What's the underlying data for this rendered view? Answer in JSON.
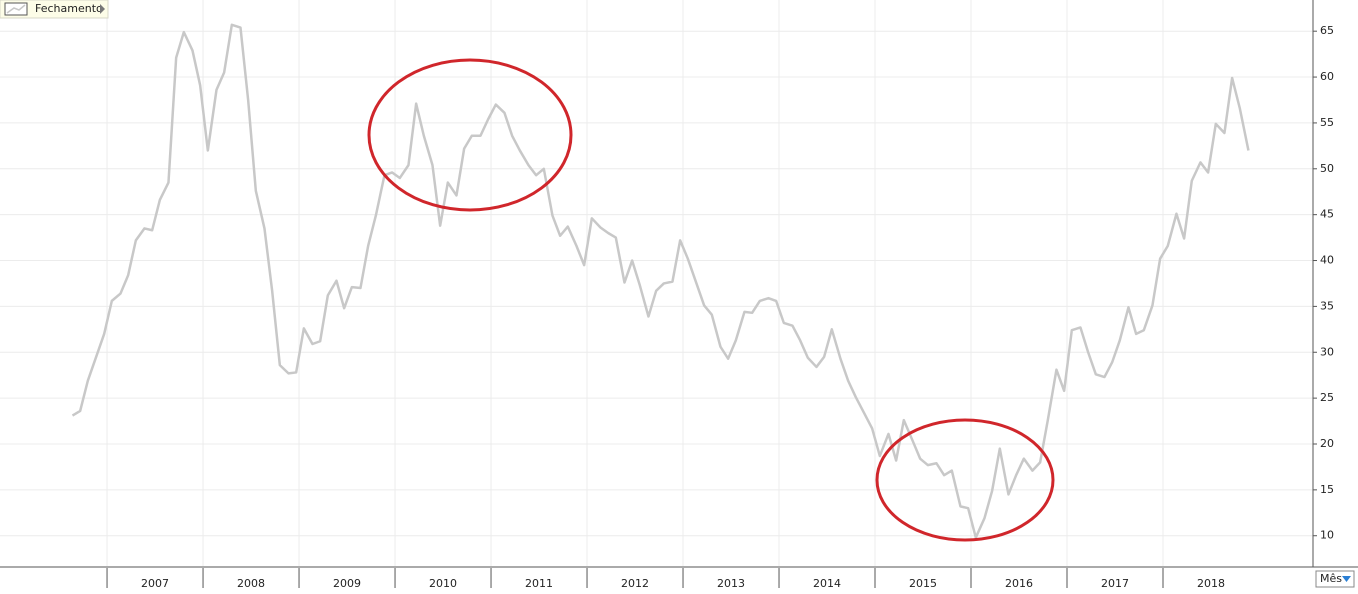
{
  "chart_data": {
    "type": "line",
    "x": [
      2006.64,
      2006.72,
      2006.8,
      2006.89,
      2006.97,
      2007.05,
      2007.14,
      2007.22,
      2007.3,
      2007.39,
      2007.47,
      2007.55,
      2007.64,
      2007.72,
      2007.8,
      2007.89,
      2007.97,
      2008.05,
      2008.14,
      2008.22,
      2008.3,
      2008.39,
      2008.47,
      2008.55,
      2008.64,
      2008.72,
      2008.8,
      2008.89,
      2008.97,
      2009.05,
      2009.14,
      2009.22,
      2009.3,
      2009.39,
      2009.47,
      2009.55,
      2009.64,
      2009.72,
      2009.8,
      2009.89,
      2009.97,
      2010.05,
      2010.14,
      2010.22,
      2010.3,
      2010.39,
      2010.47,
      2010.55,
      2010.64,
      2010.72,
      2010.8,
      2010.89,
      2010.97,
      2011.05,
      2011.14,
      2011.22,
      2011.3,
      2011.39,
      2011.47,
      2011.55,
      2011.64,
      2011.72,
      2011.8,
      2011.89,
      2011.97,
      2012.05,
      2012.14,
      2012.22,
      2012.3,
      2012.39,
      2012.47,
      2012.55,
      2012.64,
      2012.72,
      2012.8,
      2012.89,
      2012.97,
      2013.05,
      2013.14,
      2013.22,
      2013.3,
      2013.39,
      2013.47,
      2013.55,
      2013.64,
      2013.72,
      2013.8,
      2013.89,
      2013.97,
      2014.05,
      2014.14,
      2014.22,
      2014.3,
      2014.39,
      2014.47,
      2014.55,
      2014.64,
      2014.72,
      2014.8,
      2014.89,
      2014.97,
      2015.05,
      2015.14,
      2015.22,
      2015.3,
      2015.39,
      2015.47,
      2015.55,
      2015.64,
      2015.72,
      2015.8,
      2015.89,
      2015.97,
      2016.05,
      2016.14,
      2016.22,
      2016.3,
      2016.39,
      2016.47,
      2016.55,
      2016.64,
      2016.72,
      2016.8,
      2016.89,
      2016.97,
      2017.05,
      2017.14,
      2017.22,
      2017.3,
      2017.39,
      2017.47,
      2017.55,
      2017.64,
      2017.72,
      2017.8,
      2017.89,
      2017.97,
      2018.05,
      2018.14,
      2018.22,
      2018.3,
      2018.39,
      2018.47,
      2018.55,
      2018.64,
      2018.72,
      2018.8,
      2018.89
    ],
    "series": [
      {
        "name": "Fechamento",
        "color": "#c8c8c8",
        "values": [
          23.1,
          23.6,
          26.9,
          29.6,
          32.0,
          35.6,
          36.4,
          38.4,
          42.2,
          43.5,
          43.3,
          46.6,
          48.5,
          62.1,
          64.9,
          62.9,
          59.1,
          52.0,
          58.6,
          60.5,
          65.7,
          65.4,
          57.5,
          47.6,
          43.5,
          36.7,
          28.6,
          27.7,
          27.8,
          32.6,
          30.9,
          31.2,
          36.2,
          37.8,
          34.8,
          37.1,
          37.0,
          41.6,
          44.9,
          49.3,
          49.6,
          49.0,
          50.4,
          57.1,
          53.6,
          50.4,
          43.8,
          48.5,
          47.1,
          52.2,
          53.6,
          53.6,
          55.4,
          57.0,
          56.1,
          53.6,
          52.0,
          50.4,
          49.3,
          50.0,
          44.9,
          42.7,
          43.7,
          41.6,
          39.5,
          44.6,
          43.6,
          43.0,
          42.5,
          37.6,
          40.0,
          37.3,
          33.9,
          36.7,
          37.5,
          37.7,
          42.2,
          40.2,
          37.5,
          35.1,
          34.1,
          30.6,
          29.3,
          31.3,
          34.4,
          34.3,
          35.6,
          35.9,
          35.6,
          33.2,
          32.9,
          31.3,
          29.4,
          28.4,
          29.5,
          32.5,
          29.3,
          26.9,
          25.1,
          23.3,
          21.7,
          18.7,
          21.1,
          18.2,
          22.6,
          20.4,
          18.4,
          17.7,
          17.9,
          16.6,
          17.1,
          13.2,
          13.0,
          9.8,
          11.9,
          14.9,
          19.5,
          14.5,
          16.6,
          18.4,
          17.1,
          18.0,
          22.6,
          28.1,
          25.8,
          32.4,
          32.7,
          30.0,
          27.6,
          27.3,
          28.9,
          31.3,
          34.9,
          32.0,
          32.4,
          35.1,
          40.2,
          41.6,
          45.1,
          42.4,
          48.7,
          50.7,
          49.6,
          54.9,
          53.9,
          59.9,
          56.6,
          52.0
        ]
      }
    ],
    "xlim": [
      2005.885,
      2019.5625
    ],
    "xticks": [
      2007,
      2008,
      2009,
      2010,
      2011,
      2012,
      2013,
      2014,
      2015,
      2016,
      2017,
      2018
    ],
    "ylim": [
      6.7,
      68.4
    ],
    "yticks": [
      10,
      15,
      20,
      25,
      30,
      35,
      40,
      45,
      50,
      55,
      60,
      65
    ],
    "grid": true,
    "legend": "top-left",
    "period_label": "Mês"
  }
}
